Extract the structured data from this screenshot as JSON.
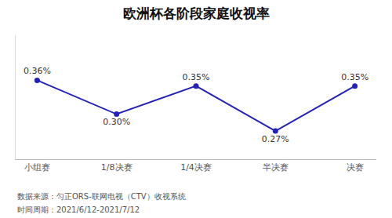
{
  "chart_data": {
    "type": "line",
    "title": "欧洲杯各阶段家庭收视率",
    "categories": [
      "小组赛",
      "1/8决赛",
      "1/4决赛",
      "半决赛",
      "决赛"
    ],
    "values": [
      0.36,
      0.3,
      0.35,
      0.27,
      0.35
    ],
    "value_labels": [
      "0.36%",
      "0.30%",
      "0.35%",
      "0.27%",
      "0.35%"
    ],
    "color": "#2222bb",
    "marker": "circle",
    "ylim": [
      0.22,
      0.44
    ],
    "grid": false,
    "data_labels": true,
    "tick_labels": "x",
    "annotations": [
      "数据来源：匀正ORS-联网电视（CTV）收视系统",
      "时间周期：2021/6/12-2021/7/12"
    ]
  }
}
